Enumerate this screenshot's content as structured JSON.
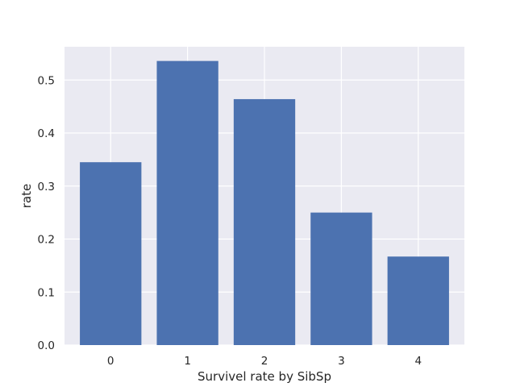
{
  "chart_data": {
    "type": "bar",
    "title": "",
    "xlabel": "Survivel rate by SibSp",
    "ylabel": "rate",
    "categories": [
      "0",
      "1",
      "2",
      "3",
      "4"
    ],
    "values": [
      0.345,
      0.536,
      0.464,
      0.25,
      0.167
    ],
    "xlim": [
      -0.6,
      4.6
    ],
    "ylim": [
      0,
      0.5628
    ],
    "yticks": [
      0.0,
      0.1,
      0.2,
      0.3,
      0.4,
      0.5
    ],
    "ytick_labels": [
      "0.0",
      "0.1",
      "0.2",
      "0.3",
      "0.4",
      "0.5"
    ],
    "grid": true,
    "legend": "none",
    "colors": {
      "bar": "#4c72b0",
      "plot_background": "#eaeaf2",
      "grid": "#ffffff",
      "text": "#262626"
    }
  }
}
